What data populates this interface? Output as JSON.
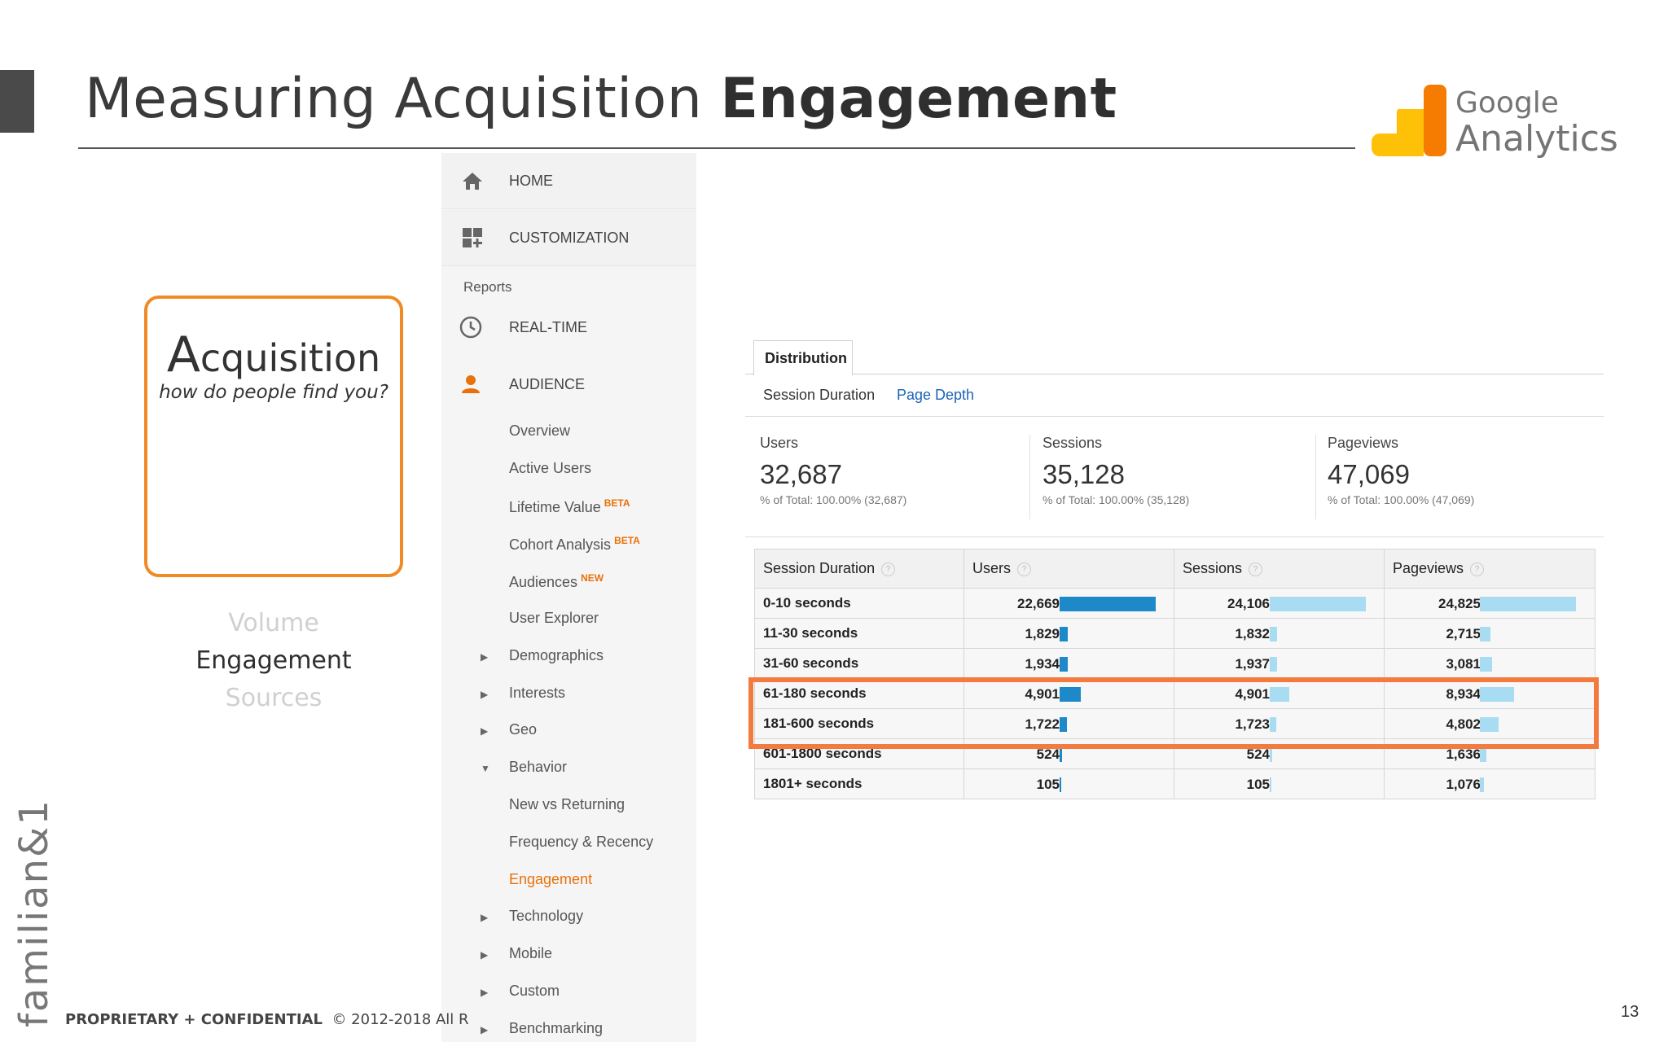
{
  "slide": {
    "title_regular": "Measuring Acquisition ",
    "title_bold": "Engagement",
    "page_number": "13",
    "footer_bold": "PROPRIETARY + CONFIDENTIAL",
    "footer_rest": "© 2012-2018 All R",
    "brand": "familian&1"
  },
  "logo": {
    "line1": "Google",
    "line2": "Analytics"
  },
  "card": {
    "title_cap": "A",
    "title_rest": "cquisition",
    "subtitle": "how do people find you?",
    "stages": [
      "Volume",
      "Engagement",
      "Sources"
    ]
  },
  "sidebar": {
    "home": "HOME",
    "customization": "CUSTOMIZATION",
    "section": "Reports",
    "realtime": "REAL-TIME",
    "audience": "AUDIENCE",
    "sub_items": [
      {
        "label": "Overview",
        "badge": ""
      },
      {
        "label": "Active Users",
        "badge": ""
      },
      {
        "label": "Lifetime Value",
        "badge": "BETA"
      },
      {
        "label": "Cohort Analysis",
        "badge": "BETA"
      },
      {
        "label": "Audiences",
        "badge": "NEW"
      },
      {
        "label": "User Explorer",
        "badge": ""
      },
      {
        "label": "Demographics",
        "badge": ""
      },
      {
        "label": "Interests",
        "badge": ""
      },
      {
        "label": "Geo",
        "badge": ""
      },
      {
        "label": "Behavior",
        "badge": ""
      },
      {
        "label": "New vs Returning",
        "badge": ""
      },
      {
        "label": "Frequency & Recency",
        "badge": ""
      },
      {
        "label": "Engagement",
        "badge": ""
      },
      {
        "label": "Technology",
        "badge": ""
      },
      {
        "label": "Mobile",
        "badge": ""
      },
      {
        "label": "Custom",
        "badge": ""
      },
      {
        "label": "Benchmarking",
        "badge": ""
      }
    ],
    "accent_color": "#e8710a"
  },
  "report": {
    "tab": "Distribution",
    "subtabs": [
      "Session Duration",
      "Page Depth"
    ],
    "metrics": [
      {
        "label": "Users",
        "value": "32,687",
        "sub": "% of Total: 100.00% (32,687)"
      },
      {
        "label": "Sessions",
        "value": "35,128",
        "sub": "% of Total: 100.00% (35,128)"
      },
      {
        "label": "Pageviews",
        "value": "47,069",
        "sub": "% of Total: 100.00% (47,069)"
      }
    ],
    "columns": [
      "Session Duration",
      "Users",
      "Sessions",
      "Pageviews"
    ],
    "rows": [
      {
        "duration": "0-10 seconds",
        "users": "22,669",
        "sessions": "24,106",
        "pageviews": "24,825"
      },
      {
        "duration": "11-30 seconds",
        "users": "1,829",
        "sessions": "1,832",
        "pageviews": "2,715"
      },
      {
        "duration": "31-60 seconds",
        "users": "1,934",
        "sessions": "1,937",
        "pageviews": "3,081"
      },
      {
        "duration": "61-180 seconds",
        "users": "4,901",
        "sessions": "4,901",
        "pageviews": "8,934"
      },
      {
        "duration": "181-600 seconds",
        "users": "1,722",
        "sessions": "1,723",
        "pageviews": "4,802"
      },
      {
        "duration": "601-1800 seconds",
        "users": "524",
        "sessions": "524",
        "pageviews": "1,636"
      },
      {
        "duration": "1801+ seconds",
        "users": "105",
        "sessions": "105",
        "pageviews": "1,076"
      }
    ],
    "highlight_color": "#f37b3f",
    "bar_color_users": "#1d89c9",
    "bar_color_light": "#a8dcf3"
  }
}
